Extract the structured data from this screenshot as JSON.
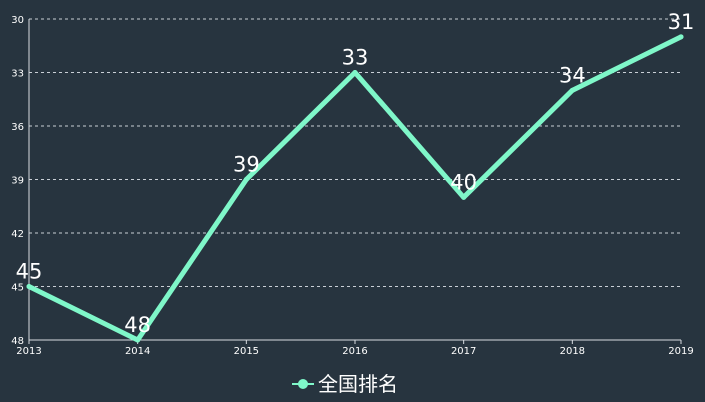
{
  "chart_data": {
    "type": "line",
    "title": "",
    "xlabel": "",
    "ylabel": "",
    "x": [
      "2013",
      "2014",
      "2015",
      "2016",
      "2017",
      "2018",
      "2019"
    ],
    "series": [
      {
        "name": "全国排名",
        "values": [
          45,
          48,
          39,
          33,
          40,
          34,
          31
        ],
        "color": "#7ff7c9"
      }
    ],
    "y_inverse": true,
    "ylim": [
      30,
      48
    ],
    "yticks": [
      30,
      33,
      36,
      39,
      42,
      45,
      48
    ],
    "grid": true,
    "legend_position": "bottom-center",
    "colors": {
      "background": "#27343f",
      "axis": "#d8dde2",
      "grid": "#c9cfd6",
      "text": "#ffffff"
    }
  }
}
